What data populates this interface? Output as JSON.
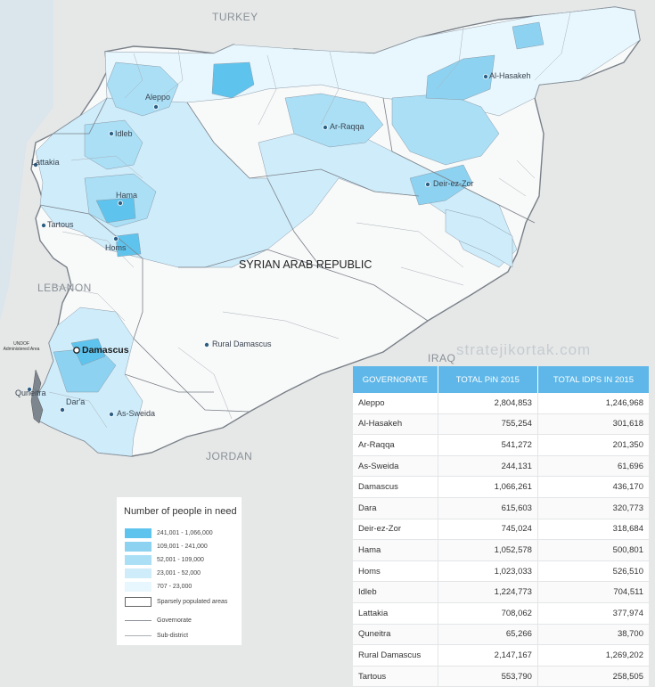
{
  "map": {
    "country_labels": {
      "turkey": "TURKEY",
      "lebanon": "LEBANON",
      "iraq": "IRAQ",
      "jordan": "JORDAN",
      "syria": "SYRIAN ARAB REPUBLIC"
    },
    "cities": {
      "aleppo": "Aleppo",
      "idleb": "Idleb",
      "lattakia": "Lattakia",
      "hama": "Hama",
      "tartous": "Tartous",
      "homs": "Homs",
      "raqqa": "Ar-Raqqa",
      "hasakeh": "Al-Hasakeh",
      "deir": "Deir-ez-Zor",
      "damascus": "Damascus",
      "rural_damascus": "Rural Damascus",
      "quneitra": "Quneitra",
      "dara": "Dar'a",
      "sweida": "As-Sweida"
    },
    "undof_label": "UNDOF Administered Area",
    "watermark": "stratejikortak.com",
    "colors": {
      "background": "#e6e8e8",
      "syria_land": "#f8f9f9",
      "class_1": "#5ec4ee",
      "class_2": "#8dd3f1",
      "class_3": "#aadff5",
      "class_4": "#cfecfa",
      "class_5": "#e8f6fd",
      "table_header": "#5eb7e8"
    }
  },
  "legend": {
    "title": "Number of people in need",
    "classes": [
      {
        "label": "241,001 - 1,066,000",
        "color": "#5ec4ee"
      },
      {
        "label": "109,001 - 241,000",
        "color": "#8dd3f1"
      },
      {
        "label": "52,001 - 109,000",
        "color": "#aadff5"
      },
      {
        "label": "23,001 - 52,000",
        "color": "#cfecfa"
      },
      {
        "label": "707 - 23,000",
        "color": "#e8f6fd"
      },
      {
        "label": "Sparsely populated areas",
        "color": "#ffffff"
      }
    ],
    "lines": [
      {
        "label": "Governorate"
      },
      {
        "label": "Sub-district"
      }
    ]
  },
  "table": {
    "headers": [
      "GOVERNORATE",
      "TOTAL PiN 2015",
      "TOTAL IDPS IN 2015"
    ],
    "rows": [
      {
        "gov": "Aleppo",
        "pin": "2,804,853",
        "idps": "1,246,968"
      },
      {
        "gov": "Al-Hasakeh",
        "pin": "755,254",
        "idps": "301,618"
      },
      {
        "gov": "Ar-Raqqa",
        "pin": "541,272",
        "idps": "201,350"
      },
      {
        "gov": "As-Sweida",
        "pin": "244,131",
        "idps": "61,696"
      },
      {
        "gov": "Damascus",
        "pin": "1,066,261",
        "idps": "436,170"
      },
      {
        "gov": "Dara",
        "pin": "615,603",
        "idps": "320,773"
      },
      {
        "gov": "Deir-ez-Zor",
        "pin": "745,024",
        "idps": "318,684"
      },
      {
        "gov": "Hama",
        "pin": "1,052,578",
        "idps": "500,801"
      },
      {
        "gov": "Homs",
        "pin": "1,023,033",
        "idps": "526,510"
      },
      {
        "gov": "Idleb",
        "pin": "1,224,773",
        "idps": "704,511"
      },
      {
        "gov": "Lattakia",
        "pin": "708,062",
        "idps": "377,974"
      },
      {
        "gov": "Quneitra",
        "pin": "65,266",
        "idps": "38,700"
      },
      {
        "gov": "Rural Damascus",
        "pin": "2,147,167",
        "idps": "1,269,202"
      },
      {
        "gov": "Tartous",
        "pin": "553,790",
        "idps": "258,505"
      }
    ]
  }
}
